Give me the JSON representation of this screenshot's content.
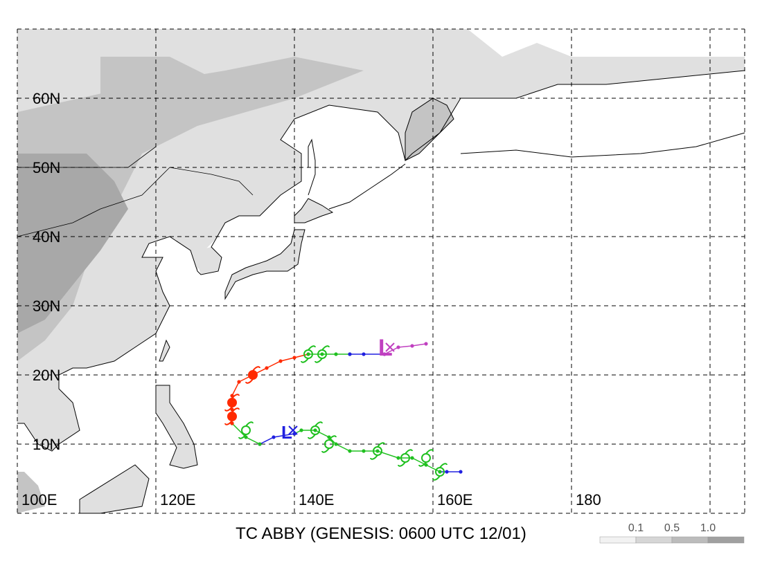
{
  "title": "TC ABBY (GENESIS: 0600 UTC 12/01)",
  "map": {
    "lon_range": [
      100,
      205
    ],
    "lat_range": [
      0,
      70
    ],
    "lat_labels": [
      {
        "lat": 60,
        "text": "60N"
      },
      {
        "lat": 50,
        "text": "50N"
      },
      {
        "lat": 40,
        "text": "40N"
      },
      {
        "lat": 30,
        "text": "30N"
      },
      {
        "lat": 20,
        "text": "20N"
      },
      {
        "lat": 10,
        "text": "10N"
      }
    ],
    "lon_labels": [
      {
        "lon": 100,
        "text": "100E"
      },
      {
        "lon": 120,
        "text": "120E"
      },
      {
        "lon": 140,
        "text": "140E"
      },
      {
        "lon": 160,
        "text": "160E"
      },
      {
        "lon": 180,
        "text": "180"
      }
    ],
    "land_color": "#ffffff",
    "terrain_colors": [
      "#e0e0e0",
      "#c4c4c4",
      "#a8a8a8"
    ]
  },
  "legend": {
    "labels": [
      "0.1",
      "0.5",
      "1.0"
    ],
    "colors": [
      "#f2f2f2",
      "#d6d6d6",
      "#bcbcbc",
      "#a0a0a0"
    ]
  },
  "track": {
    "colors": {
      "low": "#2020e0",
      "depression": "#20c020",
      "storm": "#20c020",
      "typhoon": "#ff2a00",
      "extratropical": "#c040c0"
    },
    "segments": [
      {
        "stage": "low",
        "points": [
          [
            164,
            6
          ],
          [
            162,
            6
          ],
          [
            161,
            6
          ]
        ]
      },
      {
        "stage": "storm",
        "points": [
          [
            161,
            6
          ],
          [
            159,
            7
          ],
          [
            157,
            8
          ],
          [
            155,
            8
          ],
          [
            152,
            9
          ],
          [
            150,
            9
          ],
          [
            148,
            9
          ],
          [
            146,
            10
          ],
          [
            145,
            11
          ],
          [
            143,
            12
          ],
          [
            141,
            12
          ],
          [
            140,
            11.5
          ]
        ]
      },
      {
        "stage": "low",
        "points": [
          [
            140,
            11.5
          ],
          [
            137,
            11
          ],
          [
            135,
            10
          ]
        ]
      },
      {
        "stage": "storm",
        "points": [
          [
            135,
            10
          ],
          [
            133,
            11
          ],
          [
            131,
            13
          ]
        ]
      },
      {
        "stage": "typhoon",
        "points": [
          [
            131,
            13
          ],
          [
            131,
            15
          ],
          [
            131,
            17
          ],
          [
            132,
            19
          ],
          [
            134,
            20
          ],
          [
            136,
            21
          ],
          [
            138,
            22
          ],
          [
            140,
            22.5
          ],
          [
            142,
            23
          ]
        ]
      },
      {
        "stage": "storm",
        "points": [
          [
            142,
            23
          ],
          [
            144,
            23
          ],
          [
            146,
            23
          ],
          [
            148,
            23
          ]
        ]
      },
      {
        "stage": "low",
        "points": [
          [
            148,
            23
          ],
          [
            150,
            23
          ],
          [
            153,
            23
          ]
        ]
      },
      {
        "stage": "extratropical",
        "points": [
          [
            153,
            23
          ],
          [
            155,
            24
          ],
          [
            157,
            24.2
          ],
          [
            159,
            24.5
          ]
        ]
      }
    ],
    "genesis_marker": {
      "lon": 139,
      "lat": 12,
      "symbol": "L",
      "color": "#2020e0"
    },
    "end_marker": {
      "lon": 153,
      "lat": 24,
      "symbol": "L",
      "color": "#c040c0"
    },
    "storm_symbols": [
      {
        "lon": 161,
        "lat": 6
      },
      {
        "lon": 159,
        "lat": 8
      },
      {
        "lon": 156,
        "lat": 8
      },
      {
        "lon": 152,
        "lat": 9
      },
      {
        "lon": 145,
        "lat": 10
      },
      {
        "lon": 143,
        "lat": 12
      },
      {
        "lon": 133,
        "lat": 12
      },
      {
        "lon": 142,
        "lat": 23
      },
      {
        "lon": 144,
        "lat": 23
      }
    ],
    "typhoon_symbols": [
      {
        "lon": 131,
        "lat": 14
      },
      {
        "lon": 131,
        "lat": 16
      },
      {
        "lon": 134,
        "lat": 20
      }
    ]
  }
}
